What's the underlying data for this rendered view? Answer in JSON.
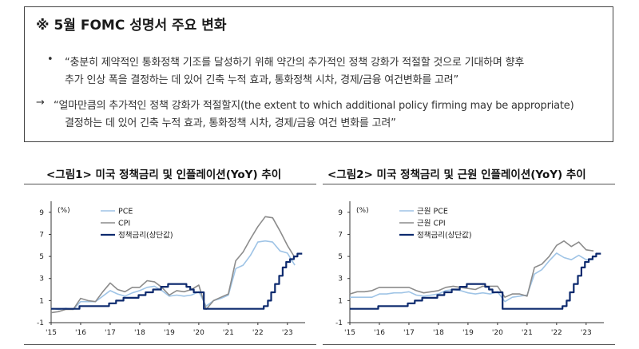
{
  "memo": {
    "title": "※ 5월 FOMC 성명서 주요 변화",
    "bullet_marker": "•",
    "arrow_marker": "→",
    "old_line1": "“충분히 제약적인 통화정책 기조를 달성하기 위해 약간의 추가적인 정책 강화가 적절할 것으로 기대하며 향후",
    "old_line2": "추가 인상 폭을 결정하는 데 있어 긴축 누적 효과, 통화정책 시차, 경제/금융 여건변화를 고려”",
    "new_line1": "“얼마만큼의 추가적인 정책 강화가 적절할지(the extent to which additional policy firming may be appropriate)",
    "new_line2": "결정하는 데 있어 긴축 누적 효과, 통화정책 시차, 경제/금융 여건 변화를 고려”"
  },
  "chart_data": [
    {
      "type": "line",
      "title": "<그림1> 미국 정책금리 및 인플레이션(YoY) 추이",
      "unit_label": "(%)",
      "xlim": [
        2015.0,
        2023.6
      ],
      "ylim": [
        -1,
        10
      ],
      "yticks": [
        -1,
        1,
        3,
        5,
        7,
        9
      ],
      "xticks": [
        {
          "x": 2015.0,
          "label": "'15"
        },
        {
          "x": 2016.0,
          "label": "'16"
        },
        {
          "x": 2017.0,
          "label": "'17"
        },
        {
          "x": 2018.0,
          "label": "'18"
        },
        {
          "x": 2019.0,
          "label": "'19"
        },
        {
          "x": 2020.0,
          "label": "'20"
        },
        {
          "x": 2021.0,
          "label": "'21"
        },
        {
          "x": 2022.0,
          "label": "'22"
        },
        {
          "x": 2023.0,
          "label": "'23"
        }
      ],
      "legend_position": "top-left",
      "series": [
        {
          "name": "PCE",
          "color": "#9fc4e6",
          "width": 1.6,
          "points": [
            [
              2015.0,
              0.3
            ],
            [
              2015.25,
              0.2
            ],
            [
              2015.5,
              0.3
            ],
            [
              2015.75,
              0.2
            ],
            [
              2016.0,
              0.9
            ],
            [
              2016.25,
              0.9
            ],
            [
              2016.5,
              0.9
            ],
            [
              2016.75,
              1.4
            ],
            [
              2017.0,
              1.9
            ],
            [
              2017.25,
              1.6
            ],
            [
              2017.5,
              1.4
            ],
            [
              2017.75,
              1.7
            ],
            [
              2018.0,
              1.9
            ],
            [
              2018.25,
              2.2
            ],
            [
              2018.5,
              2.3
            ],
            [
              2018.75,
              1.9
            ],
            [
              2019.0,
              1.4
            ],
            [
              2019.25,
              1.5
            ],
            [
              2019.5,
              1.4
            ],
            [
              2019.75,
              1.5
            ],
            [
              2020.0,
              1.8
            ],
            [
              2020.25,
              0.5
            ],
            [
              2020.5,
              1.0
            ],
            [
              2020.75,
              1.2
            ],
            [
              2021.0,
              1.5
            ],
            [
              2021.25,
              3.9
            ],
            [
              2021.5,
              4.2
            ],
            [
              2021.75,
              5.1
            ],
            [
              2022.0,
              6.3
            ],
            [
              2022.25,
              6.4
            ],
            [
              2022.5,
              6.3
            ],
            [
              2022.75,
              5.5
            ],
            [
              2023.0,
              5.3
            ],
            [
              2023.25,
              4.2
            ]
          ]
        },
        {
          "name": "CPI",
          "color": "#8c8c8c",
          "width": 1.6,
          "points": [
            [
              2015.0,
              -0.1
            ],
            [
              2015.25,
              0.0
            ],
            [
              2015.5,
              0.2
            ],
            [
              2015.75,
              0.2
            ],
            [
              2016.0,
              1.2
            ],
            [
              2016.25,
              1.0
            ],
            [
              2016.5,
              0.9
            ],
            [
              2016.75,
              1.8
            ],
            [
              2017.0,
              2.6
            ],
            [
              2017.25,
              2.0
            ],
            [
              2017.5,
              1.8
            ],
            [
              2017.75,
              2.2
            ],
            [
              2018.0,
              2.2
            ],
            [
              2018.25,
              2.8
            ],
            [
              2018.5,
              2.7
            ],
            [
              2018.75,
              2.2
            ],
            [
              2019.0,
              1.5
            ],
            [
              2019.25,
              1.9
            ],
            [
              2019.5,
              1.8
            ],
            [
              2019.75,
              2.0
            ],
            [
              2020.0,
              2.4
            ],
            [
              2020.25,
              0.2
            ],
            [
              2020.5,
              1.0
            ],
            [
              2020.75,
              1.3
            ],
            [
              2021.0,
              1.6
            ],
            [
              2021.25,
              4.6
            ],
            [
              2021.5,
              5.4
            ],
            [
              2021.75,
              6.6
            ],
            [
              2022.0,
              7.7
            ],
            [
              2022.25,
              8.6
            ],
            [
              2022.5,
              8.5
            ],
            [
              2022.75,
              7.3
            ],
            [
              2023.0,
              6.0
            ],
            [
              2023.25,
              4.9
            ]
          ]
        },
        {
          "name": "정책금리(상단값)",
          "color": "#0d2a6e",
          "width": 2.2,
          "points": [
            [
              2015.0,
              0.25
            ],
            [
              2015.96,
              0.25
            ],
            [
              2015.96,
              0.5
            ],
            [
              2016.96,
              0.5
            ],
            [
              2016.96,
              0.75
            ],
            [
              2017.2,
              0.75
            ],
            [
              2017.2,
              1.0
            ],
            [
              2017.45,
              1.0
            ],
            [
              2017.45,
              1.25
            ],
            [
              2017.96,
              1.25
            ],
            [
              2017.96,
              1.5
            ],
            [
              2018.2,
              1.5
            ],
            [
              2018.2,
              1.75
            ],
            [
              2018.45,
              1.75
            ],
            [
              2018.45,
              2.0
            ],
            [
              2018.72,
              2.0
            ],
            [
              2018.72,
              2.25
            ],
            [
              2018.96,
              2.25
            ],
            [
              2018.96,
              2.5
            ],
            [
              2019.58,
              2.5
            ],
            [
              2019.58,
              2.25
            ],
            [
              2019.71,
              2.25
            ],
            [
              2019.71,
              2.0
            ],
            [
              2019.83,
              2.0
            ],
            [
              2019.83,
              1.75
            ],
            [
              2020.17,
              1.75
            ],
            [
              2020.17,
              0.25
            ],
            [
              2022.2,
              0.25
            ],
            [
              2022.2,
              0.5
            ],
            [
              2022.34,
              0.5
            ],
            [
              2022.34,
              1.0
            ],
            [
              2022.45,
              1.0
            ],
            [
              2022.45,
              1.75
            ],
            [
              2022.58,
              1.75
            ],
            [
              2022.58,
              2.5
            ],
            [
              2022.72,
              2.5
            ],
            [
              2022.72,
              3.25
            ],
            [
              2022.84,
              3.25
            ],
            [
              2022.84,
              4.0
            ],
            [
              2022.96,
              4.0
            ],
            [
              2022.96,
              4.5
            ],
            [
              2023.09,
              4.5
            ],
            [
              2023.09,
              4.75
            ],
            [
              2023.22,
              4.75
            ],
            [
              2023.22,
              5.0
            ],
            [
              2023.34,
              5.0
            ],
            [
              2023.34,
              5.25
            ],
            [
              2023.5,
              5.25
            ]
          ]
        }
      ]
    },
    {
      "type": "line",
      "title": "<그림2> 미국 정책금리 및 근원 인플레이션(YoY) 추이",
      "unit_label": "(%)",
      "xlim": [
        2015.0,
        2023.6
      ],
      "ylim": [
        -1,
        10
      ],
      "yticks": [
        -1,
        1,
        3,
        5,
        7,
        9
      ],
      "xticks": [
        {
          "x": 2015.0,
          "label": "'15"
        },
        {
          "x": 2016.0,
          "label": "'16"
        },
        {
          "x": 2017.0,
          "label": "'17"
        },
        {
          "x": 2018.0,
          "label": "'18"
        },
        {
          "x": 2019.0,
          "label": "'19"
        },
        {
          "x": 2020.0,
          "label": "'20"
        },
        {
          "x": 2021.0,
          "label": "'21"
        },
        {
          "x": 2022.0,
          "label": "'22"
        },
        {
          "x": 2023.0,
          "label": "'23"
        }
      ],
      "legend_position": "top-left",
      "series": [
        {
          "name": "근원 PCE",
          "color": "#9fc4e6",
          "width": 1.6,
          "points": [
            [
              2015.0,
              1.3
            ],
            [
              2015.25,
              1.3
            ],
            [
              2015.5,
              1.3
            ],
            [
              2015.75,
              1.3
            ],
            [
              2016.0,
              1.6
            ],
            [
              2016.25,
              1.6
            ],
            [
              2016.5,
              1.7
            ],
            [
              2016.75,
              1.7
            ],
            [
              2017.0,
              1.8
            ],
            [
              2017.25,
              1.5
            ],
            [
              2017.5,
              1.4
            ],
            [
              2017.75,
              1.5
            ],
            [
              2018.0,
              1.6
            ],
            [
              2018.25,
              1.9
            ],
            [
              2018.5,
              2.0
            ],
            [
              2018.75,
              1.9
            ],
            [
              2019.0,
              1.7
            ],
            [
              2019.25,
              1.6
            ],
            [
              2019.5,
              1.7
            ],
            [
              2019.75,
              1.6
            ],
            [
              2020.0,
              1.8
            ],
            [
              2020.25,
              0.9
            ],
            [
              2020.5,
              1.3
            ],
            [
              2020.75,
              1.4
            ],
            [
              2021.0,
              1.5
            ],
            [
              2021.25,
              3.4
            ],
            [
              2021.5,
              3.8
            ],
            [
              2021.75,
              4.6
            ],
            [
              2022.0,
              5.3
            ],
            [
              2022.25,
              4.9
            ],
            [
              2022.5,
              4.7
            ],
            [
              2022.75,
              5.1
            ],
            [
              2023.0,
              4.7
            ],
            [
              2023.25,
              4.7
            ]
          ]
        },
        {
          "name": "근원 CPI",
          "color": "#8c8c8c",
          "width": 1.6,
          "points": [
            [
              2015.0,
              1.6
            ],
            [
              2015.25,
              1.8
            ],
            [
              2015.5,
              1.8
            ],
            [
              2015.75,
              1.9
            ],
            [
              2016.0,
              2.2
            ],
            [
              2016.25,
              2.2
            ],
            [
              2016.5,
              2.2
            ],
            [
              2016.75,
              2.2
            ],
            [
              2017.0,
              2.2
            ],
            [
              2017.25,
              1.9
            ],
            [
              2017.5,
              1.7
            ],
            [
              2017.75,
              1.8
            ],
            [
              2018.0,
              1.9
            ],
            [
              2018.25,
              2.2
            ],
            [
              2018.5,
              2.3
            ],
            [
              2018.75,
              2.2
            ],
            [
              2019.0,
              2.1
            ],
            [
              2019.25,
              2.0
            ],
            [
              2019.5,
              2.3
            ],
            [
              2019.75,
              2.3
            ],
            [
              2020.0,
              2.3
            ],
            [
              2020.25,
              1.3
            ],
            [
              2020.5,
              1.6
            ],
            [
              2020.75,
              1.6
            ],
            [
              2021.0,
              1.4
            ],
            [
              2021.25,
              4.0
            ],
            [
              2021.5,
              4.3
            ],
            [
              2021.75,
              5.0
            ],
            [
              2022.0,
              6.0
            ],
            [
              2022.25,
              6.4
            ],
            [
              2022.5,
              5.9
            ],
            [
              2022.75,
              6.3
            ],
            [
              2023.0,
              5.6
            ],
            [
              2023.25,
              5.5
            ]
          ]
        },
        {
          "name": "정책금리(상단값)",
          "color": "#0d2a6e",
          "width": 2.2,
          "points": [
            [
              2015.0,
              0.25
            ],
            [
              2015.96,
              0.25
            ],
            [
              2015.96,
              0.5
            ],
            [
              2016.96,
              0.5
            ],
            [
              2016.96,
              0.75
            ],
            [
              2017.2,
              0.75
            ],
            [
              2017.2,
              1.0
            ],
            [
              2017.45,
              1.0
            ],
            [
              2017.45,
              1.25
            ],
            [
              2017.96,
              1.25
            ],
            [
              2017.96,
              1.5
            ],
            [
              2018.2,
              1.5
            ],
            [
              2018.2,
              1.75
            ],
            [
              2018.45,
              1.75
            ],
            [
              2018.45,
              2.0
            ],
            [
              2018.72,
              2.0
            ],
            [
              2018.72,
              2.25
            ],
            [
              2018.96,
              2.25
            ],
            [
              2018.96,
              2.5
            ],
            [
              2019.58,
              2.5
            ],
            [
              2019.58,
              2.25
            ],
            [
              2019.71,
              2.25
            ],
            [
              2019.71,
              2.0
            ],
            [
              2019.83,
              2.0
            ],
            [
              2019.83,
              1.75
            ],
            [
              2020.17,
              1.75
            ],
            [
              2020.17,
              0.25
            ],
            [
              2022.2,
              0.25
            ],
            [
              2022.2,
              0.5
            ],
            [
              2022.34,
              0.5
            ],
            [
              2022.34,
              1.0
            ],
            [
              2022.45,
              1.0
            ],
            [
              2022.45,
              1.75
            ],
            [
              2022.58,
              1.75
            ],
            [
              2022.58,
              2.5
            ],
            [
              2022.72,
              2.5
            ],
            [
              2022.72,
              3.25
            ],
            [
              2022.84,
              3.25
            ],
            [
              2022.84,
              4.0
            ],
            [
              2022.96,
              4.0
            ],
            [
              2022.96,
              4.5
            ],
            [
              2023.09,
              4.5
            ],
            [
              2023.09,
              4.75
            ],
            [
              2023.22,
              4.75
            ],
            [
              2023.22,
              5.0
            ],
            [
              2023.34,
              5.0
            ],
            [
              2023.34,
              5.25
            ],
            [
              2023.5,
              5.25
            ]
          ]
        }
      ]
    }
  ]
}
